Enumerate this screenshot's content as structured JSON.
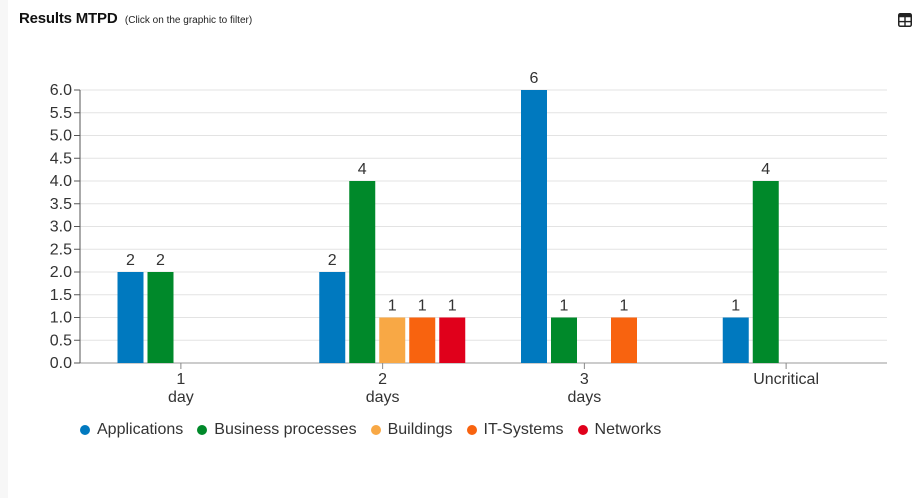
{
  "header": {
    "title": "Results MTPD",
    "hint": "(Click on the graphic to filter)"
  },
  "icons": {
    "table_toggle": "table-icon"
  },
  "chart_data": {
    "type": "bar",
    "categories": [
      [
        "1",
        "day"
      ],
      [
        "2",
        "days"
      ],
      [
        "3",
        "days"
      ],
      [
        "Uncritical"
      ]
    ],
    "series": [
      {
        "name": "Applications",
        "color": "#0079bf",
        "values": [
          2,
          2,
          6,
          1
        ]
      },
      {
        "name": "Business processes",
        "color": "#00892a",
        "values": [
          2,
          4,
          1,
          4
        ]
      },
      {
        "name": "Buildings",
        "color": "#f8a845",
        "values": [
          null,
          1,
          null,
          null
        ]
      },
      {
        "name": "IT-Systems",
        "color": "#f8630f",
        "values": [
          null,
          1,
          1,
          null
        ]
      },
      {
        "name": "Networks",
        "color": "#e0001b",
        "values": [
          null,
          1,
          null,
          null
        ]
      }
    ],
    "yticks": [
      "0.0",
      "0.5",
      "1.0",
      "1.5",
      "2.0",
      "2.5",
      "3.0",
      "3.5",
      "4.0",
      "4.5",
      "5.0",
      "5.5",
      "6.0"
    ],
    "ylim": [
      0,
      6
    ],
    "grid": true,
    "legend": "bottom-left"
  }
}
